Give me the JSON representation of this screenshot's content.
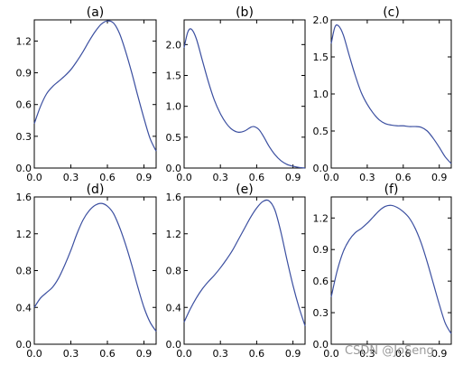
{
  "colors": {
    "line": "#3b4fa0",
    "axis": "#000000"
  },
  "watermark": "CSDN @JoSeng",
  "chart_data": [
    {
      "type": "line",
      "title": "(a)",
      "xlim": [
        0,
        1
      ],
      "ylim": [
        0,
        1.4
      ],
      "xticks": [
        0,
        0.3,
        0.6,
        0.9
      ],
      "xtick_labels": [
        "0.0",
        "0.3",
        "0.6",
        "0.9"
      ],
      "yticks": [
        0,
        0.3,
        0.6,
        0.9,
        1.2
      ],
      "ytick_labels": [
        "0.0",
        "0.3",
        "0.6",
        "0.9",
        "1.2"
      ],
      "series": [
        {
          "x": [
            0,
            0.05,
            0.1,
            0.15,
            0.2,
            0.25,
            0.3,
            0.35,
            0.4,
            0.45,
            0.5,
            0.55,
            0.6,
            0.65,
            0.7,
            0.75,
            0.8,
            0.85,
            0.9,
            0.95,
            1.0
          ],
          "y": [
            0.42,
            0.58,
            0.7,
            0.77,
            0.82,
            0.87,
            0.93,
            1.01,
            1.1,
            1.2,
            1.29,
            1.36,
            1.39,
            1.37,
            1.27,
            1.1,
            0.9,
            0.68,
            0.47,
            0.28,
            0.16
          ]
        }
      ]
    },
    {
      "type": "line",
      "title": "(b)",
      "xlim": [
        0,
        1
      ],
      "ylim": [
        0,
        2.4
      ],
      "xticks": [
        0,
        0.3,
        0.6,
        0.9
      ],
      "xtick_labels": [
        "0.0",
        "0.3",
        "0.6",
        "0.9"
      ],
      "yticks": [
        0,
        0.5,
        1.0,
        1.5,
        2.0
      ],
      "ytick_labels": [
        "0.0",
        "0.5",
        "1.0",
        "1.5",
        "2.0"
      ],
      "series": [
        {
          "x": [
            0,
            0.03,
            0.06,
            0.1,
            0.15,
            0.2,
            0.25,
            0.3,
            0.35,
            0.4,
            0.45,
            0.5,
            0.55,
            0.58,
            0.62,
            0.66,
            0.7,
            0.75,
            0.8,
            0.85,
            0.9,
            0.95,
            1.0
          ],
          "y": [
            1.95,
            2.2,
            2.25,
            2.1,
            1.75,
            1.4,
            1.1,
            0.88,
            0.72,
            0.62,
            0.58,
            0.6,
            0.66,
            0.67,
            0.62,
            0.5,
            0.36,
            0.22,
            0.12,
            0.06,
            0.03,
            0.01,
            0.0
          ]
        }
      ]
    },
    {
      "type": "line",
      "title": "(c)",
      "xlim": [
        0,
        1
      ],
      "ylim": [
        0,
        2.0
      ],
      "xticks": [
        0,
        0.3,
        0.6,
        0.9
      ],
      "xtick_labels": [
        "0.0",
        "0.3",
        "0.6",
        "0.9"
      ],
      "yticks": [
        0,
        0.5,
        1.0,
        1.5,
        2.0
      ],
      "ytick_labels": [
        "0.0",
        "0.5",
        "1.0",
        "1.5",
        "2.0"
      ],
      "series": [
        {
          "x": [
            0,
            0.03,
            0.06,
            0.1,
            0.15,
            0.2,
            0.25,
            0.3,
            0.35,
            0.4,
            0.45,
            0.5,
            0.55,
            0.6,
            0.65,
            0.7,
            0.75,
            0.8,
            0.85,
            0.9,
            0.95,
            1.0
          ],
          "y": [
            1.68,
            1.9,
            1.92,
            1.8,
            1.52,
            1.25,
            1.02,
            0.86,
            0.74,
            0.65,
            0.6,
            0.58,
            0.57,
            0.57,
            0.56,
            0.56,
            0.55,
            0.5,
            0.4,
            0.28,
            0.15,
            0.06
          ]
        }
      ]
    },
    {
      "type": "line",
      "title": "(d)",
      "xlim": [
        0,
        1
      ],
      "ylim": [
        0,
        1.6
      ],
      "xticks": [
        0,
        0.3,
        0.6,
        0.9
      ],
      "xtick_labels": [
        "0.0",
        "0.3",
        "0.6",
        "0.9"
      ],
      "yticks": [
        0,
        0.4,
        0.8,
        1.2,
        1.6
      ],
      "ytick_labels": [
        "0.0",
        "0.4",
        "0.8",
        "1.2",
        "1.6"
      ],
      "series": [
        {
          "x": [
            0,
            0.05,
            0.1,
            0.15,
            0.2,
            0.25,
            0.3,
            0.35,
            0.4,
            0.45,
            0.5,
            0.55,
            0.6,
            0.65,
            0.7,
            0.75,
            0.8,
            0.85,
            0.9,
            0.95,
            1.0
          ],
          "y": [
            0.4,
            0.5,
            0.56,
            0.62,
            0.72,
            0.86,
            1.02,
            1.2,
            1.35,
            1.45,
            1.51,
            1.53,
            1.5,
            1.42,
            1.27,
            1.08,
            0.86,
            0.62,
            0.4,
            0.24,
            0.14
          ]
        }
      ]
    },
    {
      "type": "line",
      "title": "(e)",
      "xlim": [
        0,
        1
      ],
      "ylim": [
        0,
        1.6
      ],
      "xticks": [
        0,
        0.3,
        0.6,
        0.9
      ],
      "xtick_labels": [
        "0.0",
        "0.3",
        "0.6",
        "0.9"
      ],
      "yticks": [
        0,
        0.4,
        0.8,
        1.2,
        1.6
      ],
      "ytick_labels": [
        "0.0",
        "0.4",
        "0.8",
        "1.2",
        "1.6"
      ],
      "series": [
        {
          "x": [
            0,
            0.05,
            0.1,
            0.15,
            0.2,
            0.25,
            0.3,
            0.35,
            0.4,
            0.45,
            0.5,
            0.55,
            0.6,
            0.65,
            0.7,
            0.75,
            0.8,
            0.85,
            0.9,
            0.95,
            1.0
          ],
          "y": [
            0.24,
            0.38,
            0.5,
            0.6,
            0.68,
            0.75,
            0.83,
            0.92,
            1.02,
            1.14,
            1.26,
            1.38,
            1.48,
            1.55,
            1.56,
            1.46,
            1.22,
            0.92,
            0.64,
            0.4,
            0.2
          ]
        }
      ]
    },
    {
      "type": "line",
      "title": "(f)",
      "xlim": [
        0,
        1
      ],
      "ylim": [
        0,
        1.4
      ],
      "xticks": [
        0,
        0.3,
        0.6,
        0.9
      ],
      "xtick_labels": [
        "0.0",
        "0.3",
        "0.6",
        "0.9"
      ],
      "yticks": [
        0,
        0.3,
        0.6,
        0.9,
        1.2
      ],
      "ytick_labels": [
        "0.0",
        "0.3",
        "0.6",
        "0.9",
        "1.2"
      ],
      "series": [
        {
          "x": [
            0,
            0.05,
            0.1,
            0.15,
            0.2,
            0.25,
            0.3,
            0.35,
            0.4,
            0.45,
            0.5,
            0.55,
            0.6,
            0.65,
            0.7,
            0.75,
            0.8,
            0.85,
            0.9,
            0.95,
            1.0
          ],
          "y": [
            0.45,
            0.7,
            0.88,
            0.99,
            1.06,
            1.1,
            1.15,
            1.21,
            1.27,
            1.31,
            1.32,
            1.3,
            1.26,
            1.2,
            1.1,
            0.96,
            0.78,
            0.58,
            0.38,
            0.2,
            0.1
          ]
        }
      ]
    }
  ]
}
